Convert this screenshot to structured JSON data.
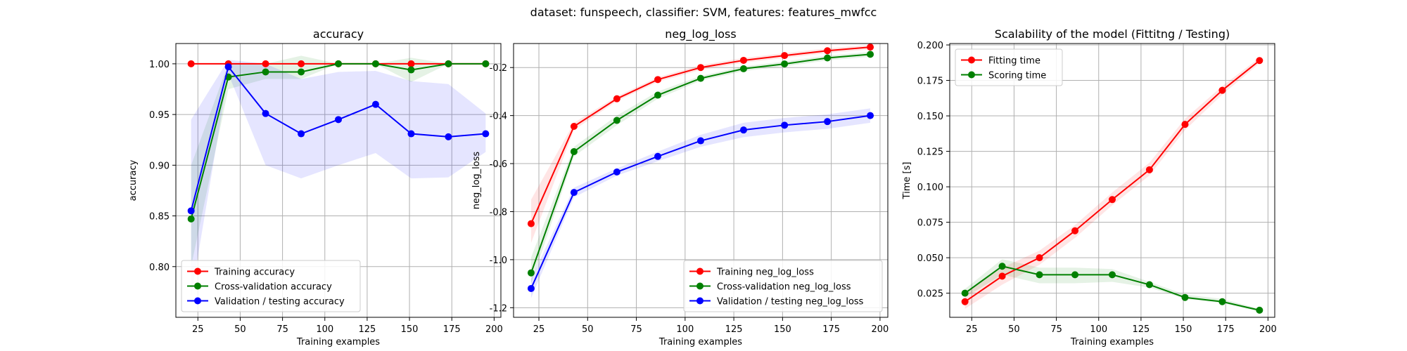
{
  "figure": {
    "suptitle": "dataset: funspeech, classifier: SVM, features: features_mwfcc"
  },
  "colors": {
    "train": "#ff0000",
    "cv": "#008000",
    "val": "#0000ff",
    "grid": "#b0b0b0"
  },
  "chart_data": [
    {
      "type": "line",
      "title": "accuracy",
      "xlabel": "Training examples",
      "ylabel": "accuracy",
      "xlim": [
        12,
        204
      ],
      "ylim": [
        0.75,
        1.02
      ],
      "xticks": [
        25,
        50,
        75,
        100,
        125,
        150,
        175,
        200
      ],
      "yticks": [
        0.8,
        0.85,
        0.9,
        0.95,
        1.0
      ],
      "tick_decimals": 2,
      "grid": true,
      "legend": "lower-left",
      "x": [
        21,
        43,
        65,
        86,
        108,
        130,
        151,
        173,
        195
      ],
      "series": [
        {
          "name": "Training accuracy",
          "color": "#ff0000",
          "values": [
            1.0,
            1.0,
            1.0,
            1.0,
            1.0,
            1.0,
            1.0,
            1.0,
            1.0
          ],
          "lower": [
            1.0,
            1.0,
            1.0,
            1.0,
            1.0,
            1.0,
            1.0,
            1.0,
            1.0
          ],
          "upper": [
            1.0,
            1.0,
            1.0,
            1.0,
            1.0,
            1.0,
            1.0,
            1.0,
            1.0
          ]
        },
        {
          "name": "Cross-validation accuracy",
          "color": "#008000",
          "values": [
            0.847,
            0.987,
            0.992,
            0.992,
            1.0,
            1.0,
            0.994,
            1.0,
            1.0
          ],
          "lower": [
            0.8,
            0.975,
            0.985,
            0.985,
            1.0,
            1.0,
            0.982,
            1.0,
            1.0
          ],
          "upper": [
            0.9,
            1.0,
            1.0,
            1.008,
            1.0,
            1.0,
            1.006,
            1.0,
            1.0
          ]
        },
        {
          "name": "Validation / testing accuracy",
          "color": "#0000ff",
          "values": [
            0.855,
            0.997,
            0.951,
            0.931,
            0.945,
            0.96,
            0.931,
            0.928,
            0.931
          ],
          "lower": [
            0.77,
            0.99,
            0.9,
            0.887,
            0.9,
            0.912,
            0.887,
            0.888,
            0.913
          ],
          "upper": [
            0.945,
            1.004,
            1.0,
            0.985,
            0.992,
            0.993,
            0.983,
            0.98,
            0.951
          ]
        }
      ]
    },
    {
      "type": "line",
      "title": "neg_log_loss",
      "xlabel": "Training examples",
      "ylabel": "neg_log_loss",
      "xlim": [
        12,
        204
      ],
      "ylim": [
        -1.24,
        -0.1
      ],
      "xticks": [
        25,
        50,
        75,
        100,
        125,
        150,
        175,
        200
      ],
      "yticks": [
        -1.2,
        -1.0,
        -0.8,
        -0.6,
        -0.4,
        -0.2
      ],
      "tick_decimals": 1,
      "grid": true,
      "legend": "lower-right",
      "x": [
        21,
        43,
        65,
        86,
        108,
        130,
        151,
        173,
        195
      ],
      "series": [
        {
          "name": "Training neg_log_loss",
          "color": "#ff0000",
          "values": [
            -0.85,
            -0.445,
            -0.33,
            -0.25,
            -0.2,
            -0.17,
            -0.15,
            -0.13,
            -0.115
          ],
          "lower": [
            -0.93,
            -0.46,
            -0.34,
            -0.26,
            -0.21,
            -0.18,
            -0.16,
            -0.14,
            -0.125
          ],
          "upper": [
            -0.75,
            -0.43,
            -0.32,
            -0.24,
            -0.19,
            -0.16,
            -0.14,
            -0.12,
            -0.105
          ]
        },
        {
          "name": "Cross-validation neg_log_loss",
          "color": "#008000",
          "values": [
            -1.055,
            -0.55,
            -0.42,
            -0.315,
            -0.245,
            -0.205,
            -0.185,
            -0.16,
            -0.145
          ],
          "lower": [
            -1.1,
            -0.57,
            -0.44,
            -0.33,
            -0.255,
            -0.215,
            -0.195,
            -0.17,
            -0.155
          ],
          "upper": [
            -0.99,
            -0.53,
            -0.4,
            -0.3,
            -0.235,
            -0.195,
            -0.175,
            -0.15,
            -0.135
          ]
        },
        {
          "name": "Validation / testing neg_log_loss",
          "color": "#0000ff",
          "values": [
            -1.12,
            -0.72,
            -0.635,
            -0.57,
            -0.505,
            -0.46,
            -0.44,
            -0.425,
            -0.4
          ],
          "lower": [
            -1.16,
            -0.74,
            -0.65,
            -0.59,
            -0.53,
            -0.49,
            -0.47,
            -0.455,
            -0.43
          ],
          "upper": [
            -1.08,
            -0.7,
            -0.62,
            -0.55,
            -0.48,
            -0.43,
            -0.41,
            -0.395,
            -0.37
          ]
        }
      ]
    },
    {
      "type": "line",
      "title": "Scalability of the model (Fittitng / Testing)",
      "xlabel": "Training examples",
      "ylabel": "Time [s]",
      "xlim": [
        12,
        204
      ],
      "ylim": [
        0.008,
        0.201
      ],
      "xticks": [
        25,
        50,
        75,
        100,
        125,
        150,
        175,
        200
      ],
      "yticks": [
        0.025,
        0.05,
        0.075,
        0.1,
        0.125,
        0.15,
        0.175,
        0.2
      ],
      "tick_decimals": 3,
      "grid": true,
      "legend": "upper-left",
      "x": [
        21,
        43,
        65,
        86,
        108,
        130,
        151,
        173,
        195
      ],
      "series": [
        {
          "name": "Fitting time",
          "color": "#ff0000",
          "values": [
            0.019,
            0.037,
            0.05,
            0.069,
            0.091,
            0.112,
            0.144,
            0.168,
            0.189
          ],
          "lower": [
            0.014,
            0.031,
            0.045,
            0.064,
            0.087,
            0.108,
            0.14,
            0.165,
            0.187
          ],
          "upper": [
            0.025,
            0.043,
            0.055,
            0.073,
            0.096,
            0.117,
            0.148,
            0.171,
            0.191
          ]
        },
        {
          "name": "Scoring time",
          "color": "#008000",
          "values": [
            0.025,
            0.044,
            0.038,
            0.038,
            0.038,
            0.031,
            0.022,
            0.019,
            0.013
          ],
          "lower": [
            0.022,
            0.038,
            0.032,
            0.032,
            0.033,
            0.029,
            0.021,
            0.018,
            0.012
          ],
          "upper": [
            0.028,
            0.049,
            0.043,
            0.043,
            0.042,
            0.033,
            0.024,
            0.021,
            0.014
          ]
        }
      ]
    }
  ]
}
